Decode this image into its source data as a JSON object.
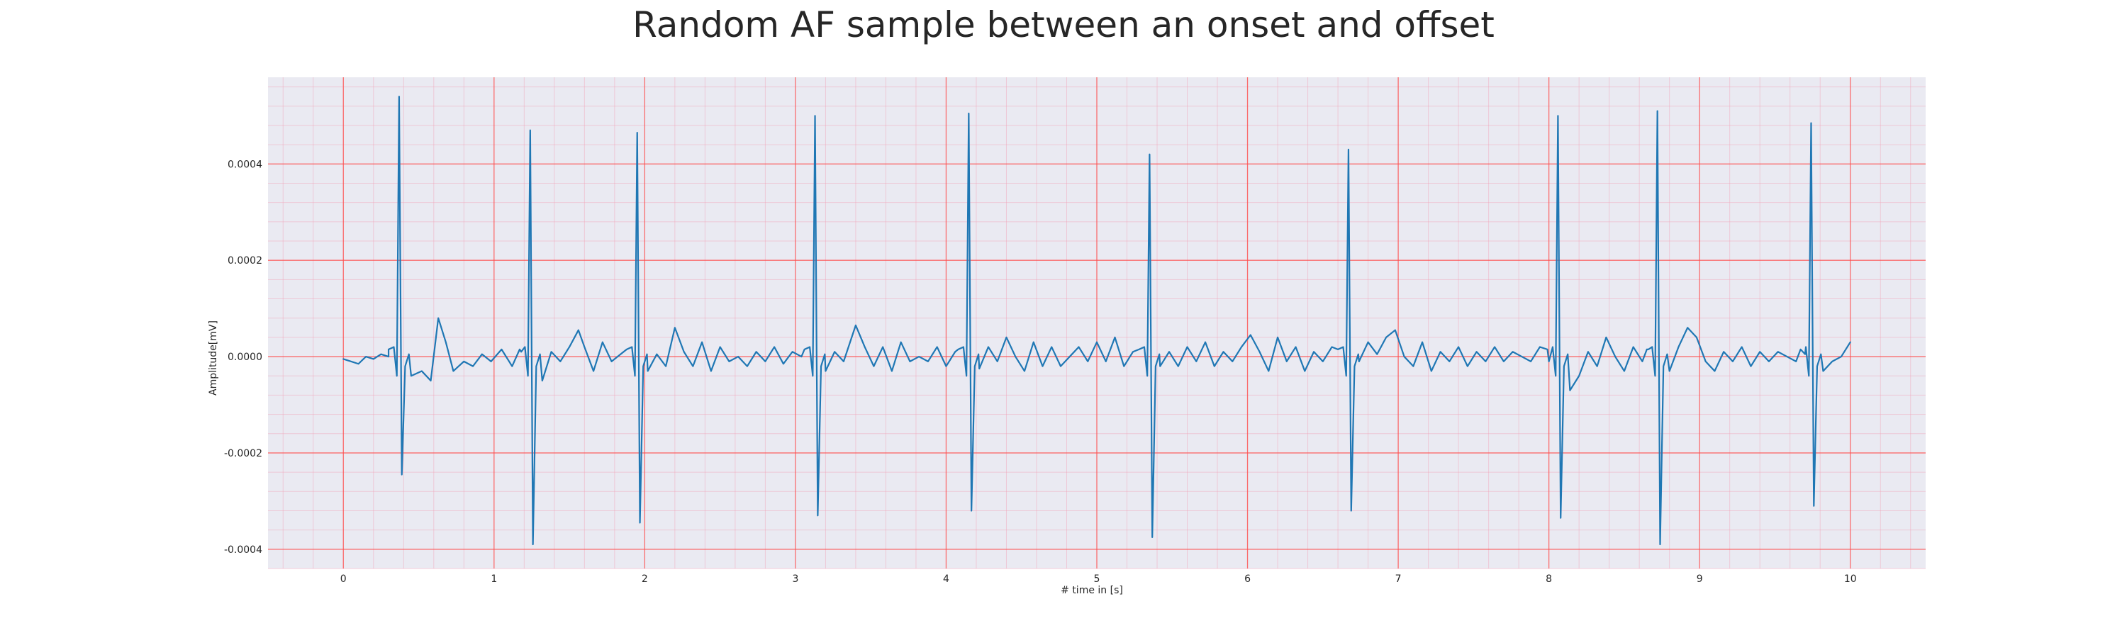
{
  "chart_data": {
    "type": "line",
    "title": "Random AF sample between an onset and offset",
    "xlabel": "# time in [s]",
    "ylabel": "Amplitude[mV]",
    "xlim": [
      -0.5,
      10.5
    ],
    "ylim": [
      -0.00044,
      0.00058
    ],
    "xticks": [
      0,
      1,
      2,
      3,
      4,
      5,
      6,
      7,
      8,
      9,
      10
    ],
    "xtick_labels": [
      "0",
      "1",
      "2",
      "3",
      "4",
      "5",
      "6",
      "7",
      "8",
      "9",
      "10"
    ],
    "yticks": [
      -0.0004,
      -0.0002,
      0.0,
      0.0002,
      0.0004
    ],
    "ytick_labels": [
      "-0.0004",
      "-0.0002",
      "0.0000",
      "0.0002",
      "0.0004"
    ],
    "grid": true,
    "minor_grid": true,
    "legend": "none",
    "colors": {
      "line": "#1f77b4",
      "plot_background": "#eaeaf2",
      "major_grid": "#ff4d4d",
      "minor_grid": "#f2a0b6",
      "text": "#262626"
    },
    "series": [
      {
        "beats": [
          {
            "t": 0.37,
            "r": 0.00054,
            "s": -0.000245
          },
          {
            "t": 1.24,
            "r": 0.00047,
            "s": -0.00039
          },
          {
            "t": 1.95,
            "r": 0.000465,
            "s": -0.000345
          },
          {
            "t": 3.13,
            "r": 0.0005,
            "s": -0.00033
          },
          {
            "t": 4.15,
            "r": 0.000505,
            "s": -0.00032
          },
          {
            "t": 5.35,
            "r": 0.00042,
            "s": -0.000375
          },
          {
            "t": 6.67,
            "r": 0.00043,
            "s": -0.00032
          },
          {
            "t": 8.06,
            "r": 0.0005,
            "s": -0.000335
          },
          {
            "t": 8.72,
            "r": 0.00051,
            "s": -0.00039
          },
          {
            "t": 9.74,
            "r": 0.000485,
            "s": -0.00031
          }
        ],
        "baseline_points": [
          [
            0.0,
            -5e-06
          ],
          [
            0.05,
            -1e-05
          ],
          [
            0.1,
            -1.5e-05
          ],
          [
            0.15,
            0.0
          ],
          [
            0.2,
            -5e-06
          ],
          [
            0.25,
            5e-06
          ],
          [
            0.3,
            0.0
          ],
          [
            0.45,
            -4e-05
          ],
          [
            0.52,
            -3e-05
          ],
          [
            0.58,
            -5e-05
          ],
          [
            0.63,
            8e-05
          ],
          [
            0.68,
            3e-05
          ],
          [
            0.73,
            -3e-05
          ],
          [
            0.8,
            -1e-05
          ],
          [
            0.86,
            -2e-05
          ],
          [
            0.92,
            5e-06
          ],
          [
            0.98,
            -1e-05
          ],
          [
            1.05,
            1.5e-05
          ],
          [
            1.12,
            -2e-05
          ],
          [
            1.18,
            1e-05
          ],
          [
            1.32,
            -5e-05
          ],
          [
            1.38,
            1e-05
          ],
          [
            1.44,
            -1e-05
          ],
          [
            1.5,
            2e-05
          ],
          [
            1.56,
            5.5e-05
          ],
          [
            1.6,
            2e-05
          ],
          [
            1.66,
            -3e-05
          ],
          [
            1.72,
            3e-05
          ],
          [
            1.78,
            -1e-05
          ],
          [
            1.84,
            5e-06
          ],
          [
            2.02,
            -3e-05
          ],
          [
            2.08,
            5e-06
          ],
          [
            2.14,
            -2e-05
          ],
          [
            2.2,
            6e-05
          ],
          [
            2.26,
            1e-05
          ],
          [
            2.32,
            -2e-05
          ],
          [
            2.38,
            3e-05
          ],
          [
            2.44,
            -3e-05
          ],
          [
            2.5,
            2e-05
          ],
          [
            2.56,
            -1e-05
          ],
          [
            2.62,
            0.0
          ],
          [
            2.68,
            -2e-05
          ],
          [
            2.74,
            1e-05
          ],
          [
            2.8,
            -1e-05
          ],
          [
            2.86,
            2e-05
          ],
          [
            2.92,
            -1.5e-05
          ],
          [
            2.98,
            1e-05
          ],
          [
            3.04,
            0.0
          ],
          [
            3.2,
            -3e-05
          ],
          [
            3.26,
            1e-05
          ],
          [
            3.32,
            -1e-05
          ],
          [
            3.4,
            6.5e-05
          ],
          [
            3.46,
            2e-05
          ],
          [
            3.52,
            -2e-05
          ],
          [
            3.58,
            2e-05
          ],
          [
            3.64,
            -3e-05
          ],
          [
            3.7,
            3e-05
          ],
          [
            3.76,
            -1e-05
          ],
          [
            3.82,
            0.0
          ],
          [
            3.88,
            -1e-05
          ],
          [
            3.94,
            2e-05
          ],
          [
            4.0,
            -2e-05
          ],
          [
            4.06,
            1e-05
          ],
          [
            4.22,
            -2.5e-05
          ],
          [
            4.28,
            2e-05
          ],
          [
            4.34,
            -1e-05
          ],
          [
            4.4,
            4e-05
          ],
          [
            4.46,
            0.0
          ],
          [
            4.52,
            -3e-05
          ],
          [
            4.58,
            3e-05
          ],
          [
            4.64,
            -2e-05
          ],
          [
            4.7,
            2e-05
          ],
          [
            4.76,
            -2e-05
          ],
          [
            4.82,
            0.0
          ],
          [
            4.88,
            2e-05
          ],
          [
            4.94,
            -1e-05
          ],
          [
            5.0,
            3e-05
          ],
          [
            5.06,
            -1e-05
          ],
          [
            5.12,
            4e-05
          ],
          [
            5.18,
            -2e-05
          ],
          [
            5.24,
            1e-05
          ],
          [
            5.42,
            -2e-05
          ],
          [
            5.48,
            1e-05
          ],
          [
            5.54,
            -2e-05
          ],
          [
            5.6,
            2e-05
          ],
          [
            5.66,
            -1e-05
          ],
          [
            5.72,
            3e-05
          ],
          [
            5.78,
            -2e-05
          ],
          [
            5.84,
            1e-05
          ],
          [
            5.9,
            -1e-05
          ],
          [
            5.96,
            2e-05
          ],
          [
            6.02,
            4.5e-05
          ],
          [
            6.08,
            1e-05
          ],
          [
            6.14,
            -3e-05
          ],
          [
            6.2,
            4e-05
          ],
          [
            6.26,
            -1e-05
          ],
          [
            6.32,
            2e-05
          ],
          [
            6.38,
            -3e-05
          ],
          [
            6.44,
            1e-05
          ],
          [
            6.5,
            -1e-05
          ],
          [
            6.56,
            2e-05
          ],
          [
            6.74,
            -1e-05
          ],
          [
            6.8,
            3e-05
          ],
          [
            6.86,
            5e-06
          ],
          [
            6.92,
            4e-05
          ],
          [
            6.98,
            5.5e-05
          ],
          [
            7.04,
            0.0
          ],
          [
            7.1,
            -2e-05
          ],
          [
            7.16,
            3e-05
          ],
          [
            7.22,
            -3e-05
          ],
          [
            7.28,
            1e-05
          ],
          [
            7.34,
            -1e-05
          ],
          [
            7.4,
            2e-05
          ],
          [
            7.46,
            -2e-05
          ],
          [
            7.52,
            1e-05
          ],
          [
            7.58,
            -1e-05
          ],
          [
            7.64,
            2e-05
          ],
          [
            7.7,
            -1e-05
          ],
          [
            7.76,
            1e-05
          ],
          [
            7.82,
            0.0
          ],
          [
            7.88,
            -1e-05
          ],
          [
            7.94,
            2e-05
          ],
          [
            8.0,
            -1e-05
          ],
          [
            8.14,
            -7e-05
          ],
          [
            8.2,
            -4e-05
          ],
          [
            8.26,
            1e-05
          ],
          [
            8.32,
            -2e-05
          ],
          [
            8.38,
            4e-05
          ],
          [
            8.44,
            0.0
          ],
          [
            8.5,
            -3e-05
          ],
          [
            8.56,
            2e-05
          ],
          [
            8.62,
            -1e-05
          ],
          [
            8.66,
            1.5e-05
          ],
          [
            8.8,
            -3e-05
          ],
          [
            8.86,
            2e-05
          ],
          [
            8.92,
            6e-05
          ],
          [
            8.98,
            4e-05
          ],
          [
            9.04,
            -1e-05
          ],
          [
            9.1,
            -3e-05
          ],
          [
            9.16,
            1e-05
          ],
          [
            9.22,
            -1e-05
          ],
          [
            9.28,
            2e-05
          ],
          [
            9.34,
            -2e-05
          ],
          [
            9.4,
            1e-05
          ],
          [
            9.46,
            -1e-05
          ],
          [
            9.52,
            1e-05
          ],
          [
            9.58,
            0.0
          ],
          [
            9.64,
            -1e-05
          ],
          [
            9.7,
            5e-06
          ],
          [
            9.82,
            -3e-05
          ],
          [
            9.88,
            -1e-05
          ],
          [
            9.94,
            0.0
          ],
          [
            10.0,
            3e-05
          ]
        ]
      }
    ]
  }
}
